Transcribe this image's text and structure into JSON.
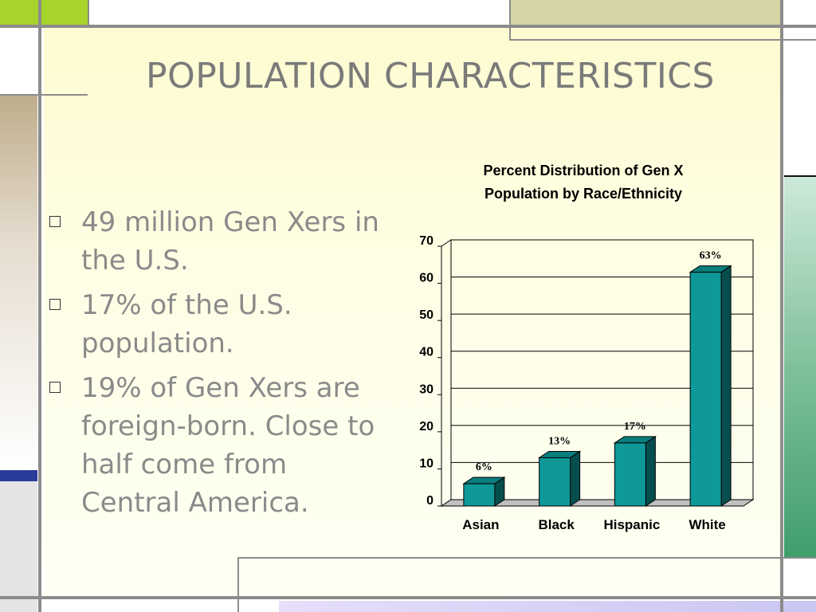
{
  "slide": {
    "title": "POPULATION CHARACTERISTICS",
    "bullets": [
      "49 million Gen Xers in the U.S.",
      "17% of the U.S. population.",
      "19% of Gen Xers are foreign-born. Close to half come from Central America."
    ],
    "bullet_icon": "square-outline-icon"
  },
  "colors": {
    "bar_front": "#0e9898",
    "bar_top": "#0a7d7d",
    "bar_side": "#064e4e",
    "title_text": "#7a7a7a",
    "body_text": "#8a8a8a",
    "accent_green": "#c8e060",
    "accent_olive": "#d6d6a8",
    "accent_blue": "#2a3b9a",
    "accent_teal": "#3f9e6c"
  },
  "chart_data": {
    "type": "bar",
    "title": "Percent Distribution of Gen X Population by Race/Ethnicity",
    "title_lines": [
      "Percent Distribution of Gen X",
      "Population by Race/Ethnicity"
    ],
    "categories": [
      "Asian",
      "Black",
      "Hispanic",
      "White"
    ],
    "values": [
      6,
      13,
      17,
      63
    ],
    "data_labels": [
      "6%",
      "13%",
      "17%",
      "63%"
    ],
    "ylim": [
      0,
      70
    ],
    "yticks": [
      0,
      10,
      20,
      30,
      40,
      50,
      60,
      70
    ],
    "grid": true,
    "xlabel": "",
    "ylabel": ""
  }
}
